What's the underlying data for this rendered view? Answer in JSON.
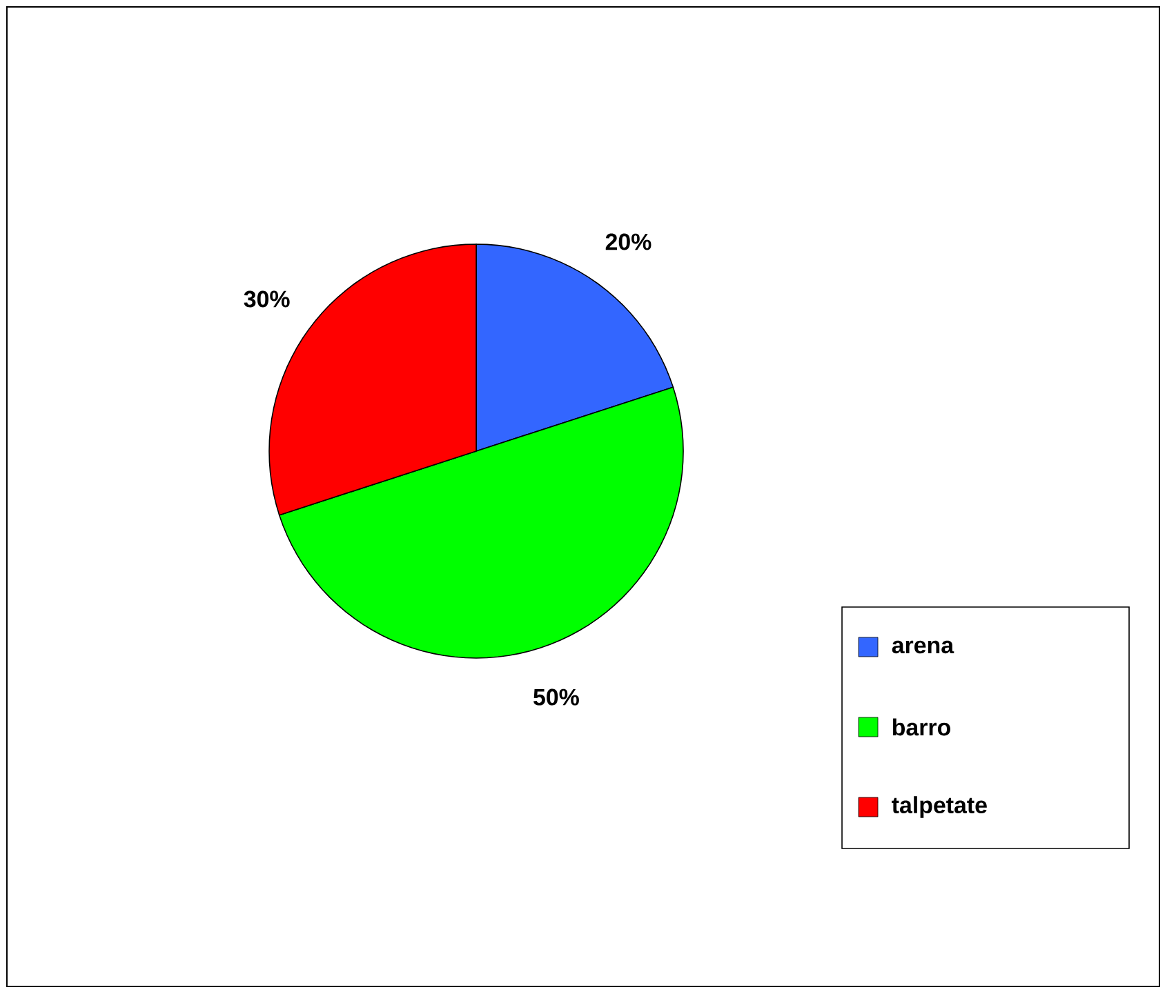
{
  "chart_data": {
    "type": "pie",
    "categories": [
      "arena",
      "barro",
      "talpetate"
    ],
    "values": [
      20,
      50,
      30
    ],
    "colors": [
      "#3366ff",
      "#00ff00",
      "#ff0000"
    ],
    "value_labels": [
      "20%",
      "50%",
      "30%"
    ],
    "legend": "bottom right"
  }
}
